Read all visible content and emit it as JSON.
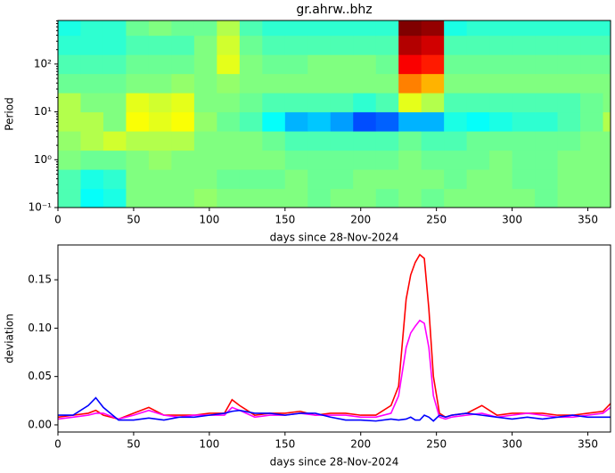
{
  "chart_data": [
    {
      "type": "heatmap",
      "title": "gr.ahrw..bhz",
      "ylabel": "Period",
      "xlabel": "days since 28-Nov-2024",
      "colormap": "jet",
      "yscale": "log",
      "x": [
        0,
        15,
        30,
        45,
        60,
        75,
        90,
        105,
        120,
        135,
        150,
        165,
        180,
        195,
        210,
        225,
        240,
        255,
        270,
        285,
        300,
        315,
        330,
        345,
        360,
        365
      ],
      "y": [
        0.1,
        0.25,
        0.63,
        1.58,
        3.98,
        10,
        25.1,
        63.1,
        158,
        398,
        813
      ],
      "z": [
        [
          0.45,
          0.38,
          0.4,
          0.5,
          0.5,
          0.5,
          0.52,
          0.5,
          0.5,
          0.5,
          0.5,
          0.48,
          0.5,
          0.5,
          0.48,
          0.5,
          0.48,
          0.5,
          0.5,
          0.5,
          0.5,
          0.48,
          0.5,
          0.5,
          0.5
        ],
        [
          0.45,
          0.4,
          0.42,
          0.5,
          0.5,
          0.5,
          0.5,
          0.48,
          0.48,
          0.48,
          0.5,
          0.48,
          0.48,
          0.5,
          0.5,
          0.5,
          0.5,
          0.48,
          0.5,
          0.5,
          0.48,
          0.48,
          0.5,
          0.5,
          0.5
        ],
        [
          0.5,
          0.48,
          0.48,
          0.5,
          0.52,
          0.5,
          0.5,
          0.5,
          0.5,
          0.5,
          0.48,
          0.48,
          0.48,
          0.48,
          0.48,
          0.5,
          0.48,
          0.48,
          0.48,
          0.5,
          0.48,
          0.48,
          0.5,
          0.5,
          0.5
        ],
        [
          0.52,
          0.55,
          0.58,
          0.55,
          0.55,
          0.55,
          0.5,
          0.5,
          0.5,
          0.48,
          0.45,
          0.45,
          0.45,
          0.45,
          0.45,
          0.48,
          0.45,
          0.45,
          0.48,
          0.48,
          0.48,
          0.48,
          0.48,
          0.5,
          0.5
        ],
        [
          0.55,
          0.55,
          0.5,
          0.62,
          0.6,
          0.62,
          0.52,
          0.48,
          0.45,
          0.38,
          0.3,
          0.32,
          0.28,
          0.2,
          0.22,
          0.3,
          0.3,
          0.4,
          0.38,
          0.4,
          0.42,
          0.42,
          0.45,
          0.48,
          0.55
        ],
        [
          0.55,
          0.5,
          0.5,
          0.6,
          0.58,
          0.6,
          0.5,
          0.5,
          0.48,
          0.45,
          0.45,
          0.45,
          0.45,
          0.42,
          0.45,
          0.6,
          0.55,
          0.45,
          0.45,
          0.45,
          0.45,
          0.45,
          0.45,
          0.48,
          0.5
        ],
        [
          0.48,
          0.48,
          0.48,
          0.5,
          0.5,
          0.52,
          0.5,
          0.52,
          0.5,
          0.5,
          0.5,
          0.5,
          0.5,
          0.5,
          0.5,
          0.75,
          0.7,
          0.5,
          0.5,
          0.5,
          0.5,
          0.5,
          0.5,
          0.5,
          0.5
        ],
        [
          0.45,
          0.45,
          0.45,
          0.48,
          0.48,
          0.48,
          0.5,
          0.6,
          0.5,
          0.48,
          0.48,
          0.5,
          0.5,
          0.5,
          0.48,
          0.88,
          0.85,
          0.48,
          0.48,
          0.48,
          0.48,
          0.48,
          0.48,
          0.48,
          0.48
        ],
        [
          0.42,
          0.42,
          0.42,
          0.45,
          0.45,
          0.45,
          0.5,
          0.58,
          0.48,
          0.45,
          0.45,
          0.45,
          0.45,
          0.45,
          0.45,
          0.95,
          0.92,
          0.45,
          0.45,
          0.45,
          0.45,
          0.45,
          0.45,
          0.45,
          0.45
        ],
        [
          0.4,
          0.42,
          0.42,
          0.48,
          0.5,
          0.48,
          0.48,
          0.55,
          0.45,
          0.42,
          0.42,
          0.42,
          0.42,
          0.42,
          0.42,
          1.0,
          0.98,
          0.4,
          0.42,
          0.42,
          0.42,
          0.42,
          0.42,
          0.42,
          0.42
        ]
      ],
      "xlim": [
        0,
        365
      ],
      "xticks": [
        0,
        50,
        100,
        150,
        200,
        250,
        300,
        350
      ],
      "ylim": [
        0.1,
        813
      ],
      "yticks": [
        {
          "value": 0.1,
          "label": "10⁻¹"
        },
        {
          "value": 1,
          "label": "10⁰"
        },
        {
          "value": 10,
          "label": "10¹"
        },
        {
          "value": 100,
          "label": "10²"
        }
      ]
    },
    {
      "type": "line",
      "ylabel": "deviation",
      "xlabel": "days since 28-Nov-2024",
      "x": [
        0,
        10,
        20,
        25,
        30,
        40,
        50,
        60,
        70,
        80,
        90,
        100,
        110,
        115,
        120,
        130,
        140,
        150,
        160,
        170,
        180,
        190,
        200,
        210,
        220,
        225,
        230,
        233,
        236,
        239,
        242,
        245,
        248,
        252,
        256,
        260,
        270,
        280,
        290,
        300,
        310,
        320,
        330,
        340,
        350,
        360,
        365
      ],
      "series": [
        {
          "color": "#ff0000",
          "values": [
            0.008,
            0.01,
            0.012,
            0.015,
            0.01,
            0.006,
            0.012,
            0.018,
            0.01,
            0.01,
            0.01,
            0.012,
            0.012,
            0.026,
            0.02,
            0.01,
            0.012,
            0.012,
            0.014,
            0.01,
            0.012,
            0.012,
            0.01,
            0.01,
            0.02,
            0.04,
            0.13,
            0.155,
            0.168,
            0.176,
            0.172,
            0.12,
            0.05,
            0.012,
            0.008,
            0.01,
            0.012,
            0.02,
            0.01,
            0.012,
            0.012,
            0.012,
            0.01,
            0.01,
            0.012,
            0.014,
            0.022
          ]
        },
        {
          "color": "#ff00ff",
          "values": [
            0.006,
            0.008,
            0.01,
            0.012,
            0.012,
            0.006,
            0.01,
            0.015,
            0.01,
            0.008,
            0.01,
            0.01,
            0.01,
            0.018,
            0.015,
            0.008,
            0.01,
            0.01,
            0.012,
            0.01,
            0.01,
            0.01,
            0.008,
            0.008,
            0.012,
            0.03,
            0.08,
            0.095,
            0.102,
            0.108,
            0.105,
            0.08,
            0.03,
            0.008,
            0.006,
            0.008,
            0.01,
            0.012,
            0.008,
            0.01,
            0.012,
            0.01,
            0.008,
            0.008,
            0.01,
            0.012,
            0.018
          ]
        },
        {
          "color": "#0000ff",
          "values": [
            0.01,
            0.01,
            0.02,
            0.028,
            0.018,
            0.005,
            0.005,
            0.007,
            0.005,
            0.008,
            0.008,
            0.01,
            0.012,
            0.014,
            0.015,
            0.012,
            0.012,
            0.01,
            0.012,
            0.012,
            0.008,
            0.005,
            0.005,
            0.004,
            0.006,
            0.005,
            0.006,
            0.008,
            0.005,
            0.005,
            0.01,
            0.008,
            0.004,
            0.01,
            0.008,
            0.01,
            0.012,
            0.01,
            0.008,
            0.006,
            0.008,
            0.006,
            0.008,
            0.01,
            0.008,
            0.008,
            0.008
          ]
        }
      ],
      "xlim": [
        0,
        365
      ],
      "xticks": [
        0,
        50,
        100,
        150,
        200,
        250,
        300,
        350
      ],
      "ylim": [
        -0.0074,
        0.186
      ],
      "yticks": [
        {
          "value": 0,
          "label": "0.00"
        },
        0.05,
        {
          "value": 0.1,
          "label": "0.10"
        },
        0.15
      ]
    }
  ]
}
